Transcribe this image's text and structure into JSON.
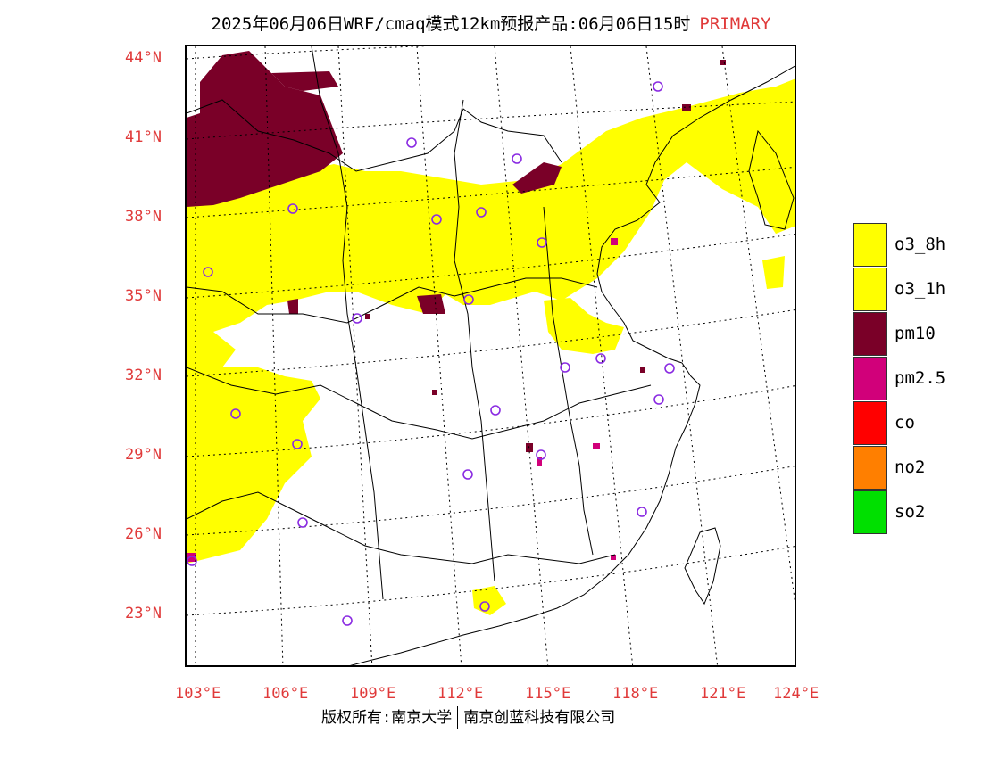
{
  "title": {
    "main": "2025年06月06日WRF/cmaq模式12km预报产品:06月06日15时",
    "tag": "PRIMARY"
  },
  "map": {
    "lat_labels": [
      "44°N",
      "41°N",
      "38°N",
      "35°N",
      "32°N",
      "29°N",
      "26°N",
      "23°N"
    ],
    "lon_labels": [
      "103°E",
      "106°E",
      "109°E",
      "112°E",
      "115°E",
      "118°E",
      "121°E",
      "124°E"
    ],
    "colors": {
      "o3_8h": "#ffff00",
      "o3_1h": "#ffff00",
      "pm10": "#7a0028",
      "pm25": "#d1007a",
      "co": "#ff0000",
      "no2": "#ff7f00",
      "so2": "#00e000",
      "station": "#8a2be2",
      "lat_lon_label": "#e03a3a"
    },
    "station_icon": "circle-station-icon"
  },
  "legend": [
    {
      "label": "o3_8h",
      "color": "#ffff00"
    },
    {
      "label": "o3_1h",
      "color": "#ffff00"
    },
    {
      "label": "pm10",
      "color": "#7a0028"
    },
    {
      "label": "pm2.5",
      "color": "#d1007a"
    },
    {
      "label": "co",
      "color": "#ff0000"
    },
    {
      "label": "no2",
      "color": "#ff7f00"
    },
    {
      "label": "so2",
      "color": "#00e000"
    }
  ],
  "footer": {
    "left": "版权所有:南京大学",
    "right": "南京创蓝科技有限公司"
  }
}
